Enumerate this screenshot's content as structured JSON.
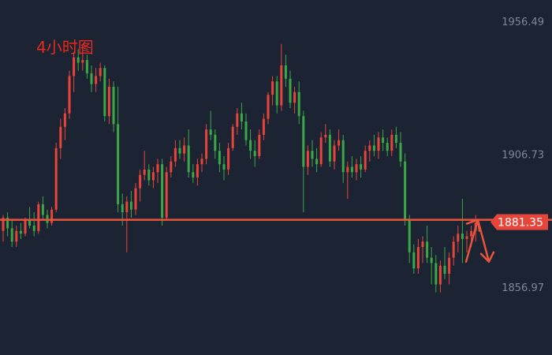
{
  "chart_data": {
    "type": "candlestick",
    "title": "4小时图",
    "y_ticks": [
      "1956.49",
      "1906.73",
      "1856.97"
    ],
    "y_tick_values": [
      1956.49,
      1906.73,
      1856.97
    ],
    "current_price": "1881.35",
    "current_price_value": 1881.35,
    "horizontal_line_value": 1882.2,
    "colors": {
      "background": "#1c2434",
      "up": "#e8443a",
      "down": "#3aa845",
      "line": "#e8553a",
      "price_tag": "#e8453a",
      "title": "#e8291c",
      "axis_text": "#7d8796"
    },
    "annotation": {
      "type": "arrows",
      "description_directions": [
        "up",
        "down"
      ],
      "anchor_price": 1882.2,
      "up_target": 1882.2,
      "down_target": 1866.5
    },
    "candles": [
      [
        1878,
        1884,
        1874,
        1883
      ],
      [
        1883,
        1885,
        1876,
        1879
      ],
      [
        1879,
        1882,
        1872,
        1874
      ],
      [
        1874,
        1880,
        1872,
        1878
      ],
      [
        1878,
        1881,
        1875,
        1877
      ],
      [
        1877,
        1883,
        1876,
        1882
      ],
      [
        1882,
        1887,
        1879,
        1880
      ],
      [
        1880,
        1885,
        1876,
        1878
      ],
      [
        1878,
        1889,
        1877,
        1888
      ],
      [
        1888,
        1891,
        1882,
        1884
      ],
      [
        1884,
        1886,
        1879,
        1881
      ],
      [
        1881,
        1887,
        1880,
        1886
      ],
      [
        1886,
        1911,
        1885,
        1909
      ],
      [
        1909,
        1920,
        1905,
        1917
      ],
      [
        1917,
        1924,
        1912,
        1922
      ],
      [
        1922,
        1938,
        1920,
        1936
      ],
      [
        1936,
        1945,
        1930,
        1943
      ],
      [
        1943,
        1946,
        1938,
        1941
      ],
      [
        1941,
        1948,
        1938,
        1942
      ],
      [
        1942,
        1944,
        1935,
        1937
      ],
      [
        1937,
        1940,
        1930,
        1933
      ],
      [
        1933,
        1939,
        1930,
        1936
      ],
      [
        1936,
        1941,
        1934,
        1939
      ],
      [
        1939,
        1940,
        1919,
        1921
      ],
      [
        1921,
        1935,
        1918,
        1932
      ],
      [
        1932,
        1934,
        1915,
        1918
      ],
      [
        1918,
        1932,
        1885,
        1888
      ],
      [
        1888,
        1892,
        1880,
        1885
      ],
      [
        1885,
        1891,
        1870,
        1889
      ],
      [
        1889,
        1893,
        1883,
        1886
      ],
      [
        1886,
        1896,
        1884,
        1894
      ],
      [
        1894,
        1901,
        1889,
        1899
      ],
      [
        1899,
        1908,
        1897,
        1901
      ],
      [
        1901,
        1903,
        1895,
        1897
      ],
      [
        1897,
        1902,
        1894,
        1900
      ],
      [
        1900,
        1905,
        1896,
        1903
      ],
      [
        1903,
        1905,
        1880,
        1883
      ],
      [
        1883,
        1902,
        1882,
        1900
      ],
      [
        1900,
        1906,
        1898,
        1904
      ],
      [
        1904,
        1912,
        1902,
        1909
      ],
      [
        1909,
        1912,
        1905,
        1907
      ],
      [
        1907,
        1913,
        1904,
        1910
      ],
      [
        1910,
        1916,
        1898,
        1900
      ],
      [
        1900,
        1903,
        1896,
        1898
      ],
      [
        1898,
        1905,
        1895,
        1903
      ],
      [
        1903,
        1907,
        1900,
        1905
      ],
      [
        1905,
        1918,
        1903,
        1916
      ],
      [
        1916,
        1923,
        1912,
        1914
      ],
      [
        1914,
        1916,
        1905,
        1908
      ],
      [
        1908,
        1911,
        1900,
        1903
      ],
      [
        1903,
        1906,
        1897,
        1901
      ],
      [
        1901,
        1911,
        1899,
        1909
      ],
      [
        1909,
        1918,
        1908,
        1917
      ],
      [
        1917,
        1924,
        1914,
        1922
      ],
      [
        1922,
        1926,
        1916,
        1919
      ],
      [
        1919,
        1922,
        1910,
        1912
      ],
      [
        1912,
        1916,
        1905,
        1908
      ],
      [
        1908,
        1912,
        1902,
        1906
      ],
      [
        1906,
        1916,
        1905,
        1914
      ],
      [
        1914,
        1922,
        1912,
        1920
      ],
      [
        1920,
        1930,
        1918,
        1929
      ],
      [
        1929,
        1936,
        1925,
        1934
      ],
      [
        1934,
        1936,
        1922,
        1925
      ],
      [
        1925,
        1948,
        1923,
        1940
      ],
      [
        1940,
        1944,
        1932,
        1935
      ],
      [
        1935,
        1938,
        1924,
        1926
      ],
      [
        1926,
        1932,
        1922,
        1930
      ],
      [
        1930,
        1934,
        1918,
        1921
      ],
      [
        1921,
        1923,
        1885,
        1902
      ],
      [
        1902,
        1910,
        1899,
        1908
      ],
      [
        1908,
        1912,
        1902,
        1905
      ],
      [
        1905,
        1909,
        1900,
        1903
      ],
      [
        1903,
        1915,
        1902,
        1913
      ],
      [
        1913,
        1918,
        1911,
        1914
      ],
      [
        1914,
        1916,
        1902,
        1904
      ],
      [
        1904,
        1912,
        1901,
        1910
      ],
      [
        1910,
        1916,
        1908,
        1912
      ],
      [
        1912,
        1914,
        1896,
        1900
      ],
      [
        1900,
        1904,
        1890,
        1902
      ],
      [
        1902,
        1906,
        1898,
        1900
      ],
      [
        1900,
        1905,
        1897,
        1903
      ],
      [
        1903,
        1906,
        1898,
        1901
      ],
      [
        1901,
        1910,
        1900,
        1908
      ],
      [
        1908,
        1912,
        1904,
        1910
      ],
      [
        1910,
        1914,
        1906,
        1908
      ],
      [
        1908,
        1915,
        1905,
        1913
      ],
      [
        1913,
        1916,
        1908,
        1911
      ],
      [
        1911,
        1913,
        1906,
        1908
      ],
      [
        1908,
        1916,
        1906,
        1914
      ],
      [
        1914,
        1917,
        1909,
        1911
      ],
      [
        1911,
        1915,
        1902,
        1904
      ],
      [
        1904,
        1907,
        1880,
        1882
      ],
      [
        1882,
        1884,
        1866,
        1870
      ],
      [
        1870,
        1873,
        1862,
        1864
      ],
      [
        1864,
        1875,
        1862,
        1872
      ],
      [
        1872,
        1876,
        1866,
        1874
      ],
      [
        1874,
        1880,
        1866,
        1868
      ],
      [
        1868,
        1872,
        1858,
        1866
      ],
      [
        1866,
        1869,
        1855,
        1858
      ],
      [
        1858,
        1867,
        1855,
        1865
      ],
      [
        1865,
        1872,
        1860,
        1862
      ],
      [
        1862,
        1870,
        1858,
        1868
      ],
      [
        1868,
        1876,
        1865,
        1874
      ],
      [
        1874,
        1880,
        1870,
        1877
      ],
      [
        1877,
        1890,
        1866,
        1875
      ],
      [
        1875,
        1878,
        1870,
        1876
      ],
      [
        1876,
        1880,
        1872,
        1878
      ],
      [
        1878,
        1884,
        1874,
        1881
      ]
    ]
  }
}
